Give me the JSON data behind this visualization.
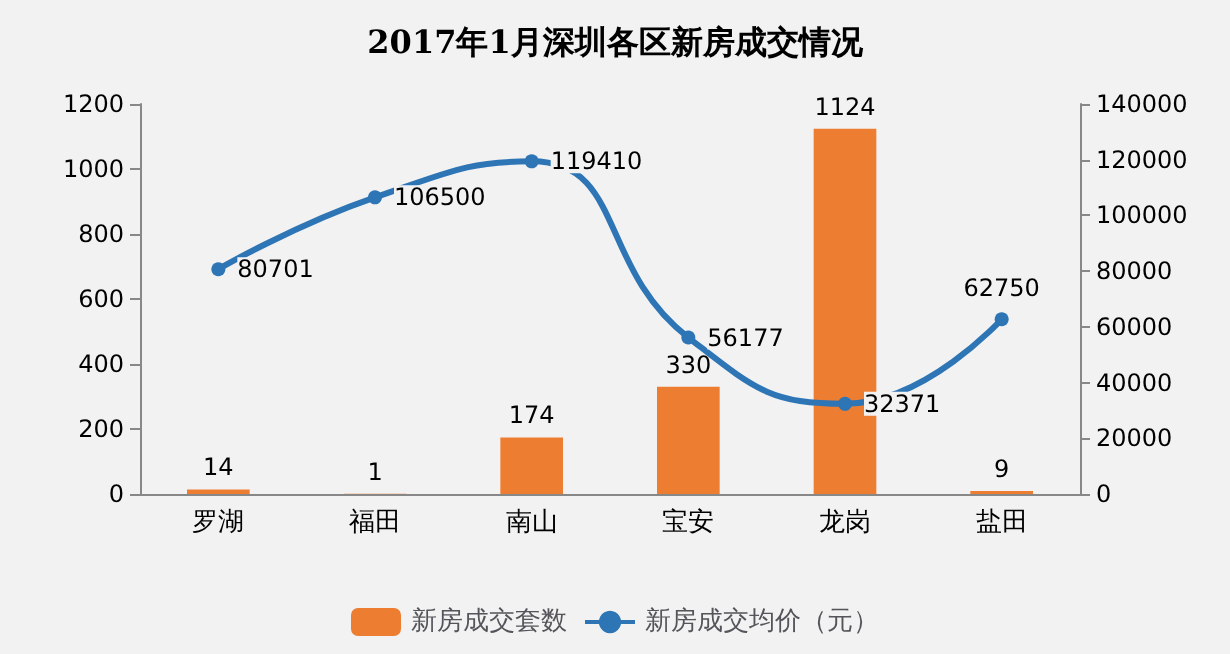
{
  "chart_data": {
    "type": "bar",
    "title": "2017年1月深圳各区新房成交情况",
    "categories": [
      "罗湖",
      "福田",
      "南山",
      "宝安",
      "龙岗",
      "盐田"
    ],
    "series": [
      {
        "name": "新房成交套数",
        "color": "#ed7d31",
        "values": [
          14,
          1,
          174,
          330,
          1124,
          9
        ]
      },
      {
        "name": "新房成交均价（元）",
        "type": "line",
        "axis": "y2",
        "color": "#2e75b6",
        "values": [
          80701,
          106500,
          119410,
          56177,
          32371,
          62750
        ]
      }
    ],
    "ylim": [
      0,
      1200
    ],
    "yticks": [
      0,
      200,
      400,
      600,
      800,
      1000,
      1200
    ],
    "y2lim": [
      0,
      140000
    ],
    "y2ticks": [
      0,
      20000,
      40000,
      60000,
      80000,
      100000,
      120000,
      140000
    ],
    "data_labels": true,
    "legend": "bottom",
    "grid": false,
    "marker": "circle"
  }
}
